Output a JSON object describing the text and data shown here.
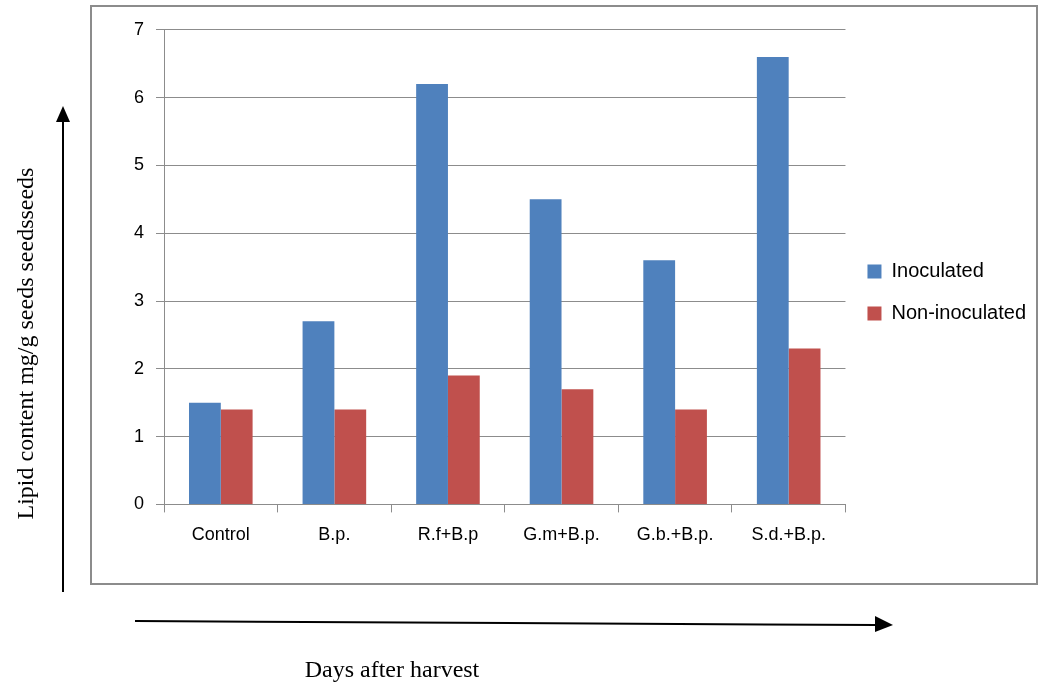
{
  "chart_data": {
    "type": "bar",
    "xlabel": "Days after harvest",
    "ylabel": "Lipid content mg/g seeds  seedsseeds",
    "categories": [
      "Control",
      "B.p.",
      "R.f+B.p",
      "G.m+B.p.",
      "G.b.+B.p.",
      "S.d.+B.p."
    ],
    "series": [
      {
        "name": "Inoculated",
        "color": "#4f81bd",
        "values": [
          1.5,
          2.7,
          6.2,
          4.5,
          3.6,
          6.6
        ]
      },
      {
        "name": "Non-inoculated",
        "color": "#c0504d",
        "values": [
          1.4,
          1.4,
          1.9,
          1.7,
          1.4,
          2.3
        ]
      }
    ],
    "ylim": [
      0,
      7
    ],
    "yticks": [
      0,
      1,
      2,
      3,
      4,
      5,
      6,
      7
    ],
    "grid": "y",
    "legend": "right"
  }
}
